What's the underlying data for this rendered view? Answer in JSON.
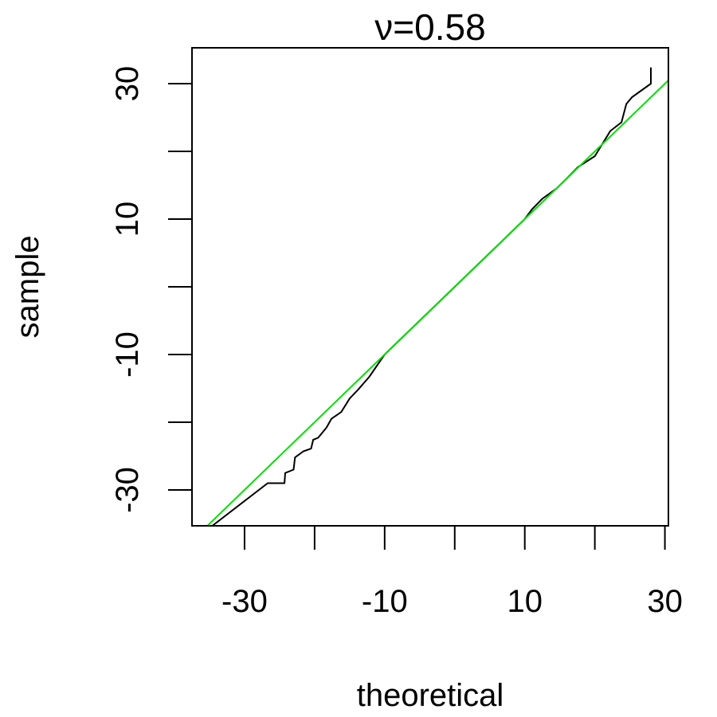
{
  "chart_data": {
    "type": "line",
    "title": "ν=0.58",
    "xlabel": "theoretical",
    "ylabel": "sample",
    "xlim": [
      -37.5,
      30.5
    ],
    "ylim": [
      -35.3,
      35.3
    ],
    "x_ticks": [
      -30,
      -20,
      -10,
      0,
      10,
      20,
      30
    ],
    "x_tick_labels": [
      "-30",
      "",
      "-10",
      "",
      "10",
      "",
      "30"
    ],
    "y_ticks": [
      -30,
      -20,
      -10,
      0,
      10,
      20,
      30
    ],
    "y_tick_labels": [
      "-30",
      "",
      "-10",
      "",
      "10",
      "",
      "30"
    ],
    "grid": false,
    "series": [
      {
        "role": "sample-quantiles",
        "color": "#000000",
        "x": [
          -34.6,
          -26.7,
          -24.3,
          -24.2,
          -23.0,
          -22.8,
          -21.6,
          -20.5,
          -20.2,
          -19.5,
          -18.3,
          -17.6,
          -16.2,
          -15.0,
          -13.8,
          -12.2,
          -10.0,
          -5.0,
          0.0,
          5.0,
          10.0,
          11.0,
          12.5,
          14.5,
          16.0,
          17.6,
          20.0,
          22.2,
          23.8,
          24.5,
          25.3,
          28.0,
          28.0
        ],
        "y": [
          -35.3,
          -29.0,
          -29.0,
          -27.5,
          -27.0,
          -25.2,
          -24.3,
          -23.9,
          -22.6,
          -22.3,
          -20.8,
          -19.5,
          -18.5,
          -16.5,
          -15.2,
          -13.3,
          -10.0,
          -5.0,
          0.0,
          5.0,
          10.0,
          11.4,
          13.0,
          14.5,
          16.0,
          17.7,
          19.3,
          23.0,
          24.3,
          27.0,
          28.0,
          30.0,
          32.4
        ]
      },
      {
        "role": "reference-line",
        "color": "#00e000",
        "x": [
          -35.3,
          30.5
        ],
        "y": [
          -35.3,
          30.5
        ]
      }
    ]
  }
}
